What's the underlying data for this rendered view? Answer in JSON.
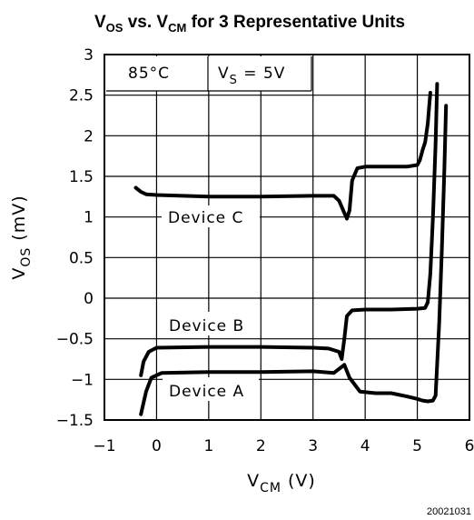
{
  "chart_data": {
    "type": "line",
    "title": {
      "parts": [
        {
          "text": "V",
          "sub": "OS"
        },
        {
          "text": " vs. V",
          "sub": "CM"
        },
        {
          "text": " for 3 Representative Units",
          "sub": ""
        }
      ]
    },
    "xlabel": {
      "main": "V",
      "sub": "CM",
      "rest": " (V)"
    },
    "ylabel": {
      "main": "V",
      "sub": "OS",
      "rest": " (mV)"
    },
    "xlim": [
      -1,
      6
    ],
    "ylim": [
      -1.5,
      3
    ],
    "x_ticks": [
      "-1",
      "0",
      "1",
      "2",
      "3",
      "4",
      "5",
      "6"
    ],
    "y_ticks": [
      "-1.5",
      "-1",
      "-0.5",
      "0",
      "0.5",
      "1",
      "1.5",
      "2",
      "2.5",
      "3"
    ],
    "grid": true,
    "conditions": {
      "temperature": "85°C",
      "supply": {
        "main": "V",
        "sub": "S",
        "rest": " = 5V"
      }
    },
    "series": [
      {
        "name": "Device A",
        "x": [
          -0.3,
          -0.2,
          -0.1,
          0.1,
          1.0,
          2.0,
          3.0,
          3.4,
          3.6,
          3.7,
          3.9,
          4.2,
          4.5,
          4.8,
          5.0,
          5.1,
          5.2,
          5.3,
          5.35,
          5.42,
          5.47,
          5.52,
          5.55
        ],
        "y": [
          -1.43,
          -1.15,
          -0.98,
          -0.92,
          -0.91,
          -0.91,
          -0.9,
          -0.92,
          -0.82,
          -0.98,
          -1.15,
          -1.17,
          -1.17,
          -1.21,
          -1.24,
          -1.26,
          -1.27,
          -1.26,
          -1.2,
          -0.3,
          0.6,
          1.6,
          2.37
        ]
      },
      {
        "name": "Device B",
        "x": [
          -0.3,
          -0.25,
          -0.15,
          0.0,
          1.0,
          2.0,
          3.0,
          3.3,
          3.5,
          3.55,
          3.6,
          3.65,
          3.75,
          4.0,
          4.5,
          5.0,
          5.15,
          5.2,
          5.25,
          5.3,
          5.35,
          5.38
        ],
        "y": [
          -0.95,
          -0.78,
          -0.66,
          -0.61,
          -0.6,
          -0.6,
          -0.61,
          -0.62,
          -0.66,
          -0.75,
          -0.5,
          -0.22,
          -0.15,
          -0.14,
          -0.14,
          -0.13,
          -0.12,
          -0.05,
          0.3,
          1.0,
          1.9,
          2.64
        ]
      },
      {
        "name": "Device C",
        "x": [
          -0.4,
          -0.3,
          -0.2,
          0.0,
          0.5,
          1.0,
          2.0,
          3.0,
          3.4,
          3.5,
          3.6,
          3.65,
          3.7,
          3.75,
          3.85,
          4.0,
          4.3,
          4.8,
          5.0,
          5.05,
          5.1,
          5.15,
          5.2,
          5.25
        ],
        "y": [
          1.36,
          1.31,
          1.28,
          1.27,
          1.26,
          1.25,
          1.25,
          1.26,
          1.26,
          1.2,
          1.05,
          0.98,
          1.08,
          1.45,
          1.6,
          1.62,
          1.62,
          1.62,
          1.64,
          1.7,
          1.82,
          1.92,
          2.15,
          2.53
        ]
      }
    ],
    "annotations": [
      {
        "text": "Device C",
        "series": "Device C"
      },
      {
        "text": "Device B",
        "series": "Device B"
      },
      {
        "text": "Device A",
        "series": "Device A"
      }
    ],
    "figure_id": "20021031"
  }
}
